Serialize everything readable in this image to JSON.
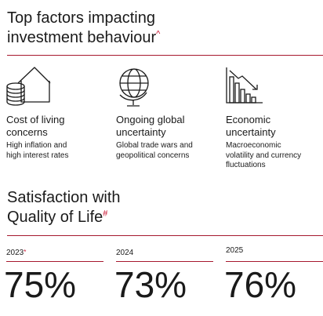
{
  "factors_section": {
    "title_line1": "Top factors impacting",
    "title_line2": "investment behaviour",
    "title_mark": "^",
    "factors": [
      {
        "icon": "house-coins-icon",
        "title_line1": "Cost of living",
        "title_line2": "concerns",
        "desc_line1": "High inflation and",
        "desc_line2": "high interest rates",
        "desc_line3": ""
      },
      {
        "icon": "globe-icon",
        "title_line1": "Ongoing global",
        "title_line2": "uncertainty",
        "desc_line1": "Global trade wars and",
        "desc_line2": "geopolitical concerns",
        "desc_line3": ""
      },
      {
        "icon": "declining-chart-icon",
        "title_line1": "Economic",
        "title_line2": "uncertainty",
        "desc_line1": "Macroeconomic",
        "desc_line2": "volatility and currency",
        "desc_line3": "fluctuations"
      }
    ]
  },
  "satisfaction_section": {
    "title_line1": "Satisfaction with",
    "title_line2": "Quality of Life",
    "title_mark": "#",
    "years": [
      {
        "year": "2023",
        "mark": "*",
        "value": "75%"
      },
      {
        "year": "2024",
        "mark": "",
        "value": "73%"
      },
      {
        "year": "2025",
        "mark": "",
        "value": "76%"
      }
    ]
  },
  "colors": {
    "accent": "#a6192e",
    "mark": "#c8102e",
    "text": "#1a1a1a"
  }
}
